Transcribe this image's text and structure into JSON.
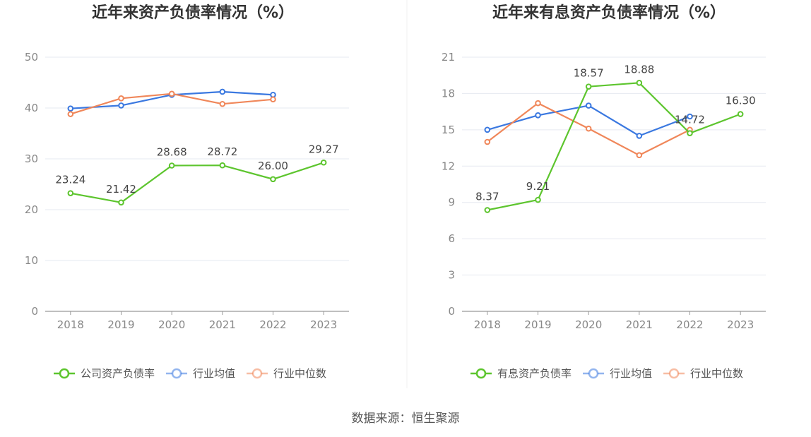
{
  "source_label": "数据来源：恒生聚源",
  "chart_data": [
    {
      "type": "line",
      "title": "近年来资产负债率情况（%）",
      "categories": [
        "2018",
        "2019",
        "2020",
        "2021",
        "2022",
        "2023"
      ],
      "ylim": [
        0,
        50
      ],
      "yticks": [
        "0",
        "10",
        "20",
        "30",
        "40",
        "50"
      ],
      "grid": true,
      "legend_position": "bottom",
      "series": [
        {
          "name": "公司资产负债率",
          "color": "#5dc52e",
          "values": [
            23.24,
            21.42,
            28.68,
            28.72,
            26.0,
            29.27
          ],
          "labels": [
            "23.24",
            "21.42",
            "28.68",
            "28.72",
            "26.00",
            "29.27"
          ]
        },
        {
          "name": "行业均值",
          "color": "#3a78e0",
          "values": [
            39.9,
            40.5,
            42.6,
            43.2,
            42.6,
            null
          ]
        },
        {
          "name": "行业中位数",
          "color": "#f0875a",
          "values": [
            38.8,
            41.9,
            42.8,
            40.8,
            41.7,
            null
          ]
        }
      ]
    },
    {
      "type": "line",
      "title": "近年来有息资产负债率情况（%）",
      "categories": [
        "2018",
        "2019",
        "2020",
        "2021",
        "2022",
        "2023"
      ],
      "ylim": [
        0,
        21
      ],
      "yticks": [
        "0",
        "3",
        "6",
        "9",
        "12",
        "15",
        "18",
        "21"
      ],
      "grid": true,
      "legend_position": "bottom",
      "series": [
        {
          "name": "有息资产负债率",
          "color": "#5dc52e",
          "values": [
            8.37,
            9.21,
            18.57,
            18.88,
            14.72,
            16.3
          ],
          "labels": [
            "8.37",
            "9.21",
            "18.57",
            "18.88",
            "14.72",
            "16.30"
          ]
        },
        {
          "name": "行业均值",
          "color": "#3a78e0",
          "values": [
            15.0,
            16.2,
            17.0,
            14.5,
            16.1,
            null
          ]
        },
        {
          "name": "行业中位数",
          "color": "#f0875a",
          "values": [
            14.0,
            17.2,
            15.1,
            12.9,
            15.0,
            null
          ]
        }
      ]
    }
  ]
}
